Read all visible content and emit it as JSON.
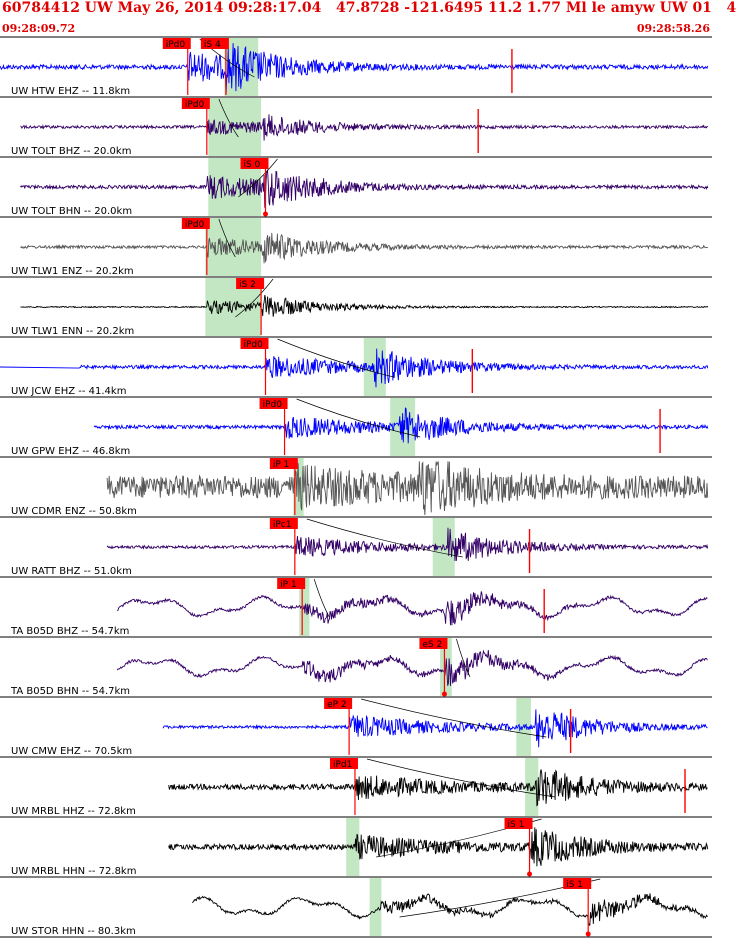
{
  "header": {
    "title": "60784412 UW May 26, 2014 09:28:17.04   47.8728 -121.6495 11.2 1.77 Ml le amyw UW 01   4",
    "time_start": "09:28:09.72",
    "time_end": "09:28:58.26"
  },
  "colors": {
    "header_text": "#e00000",
    "pick_box": "#ff0000",
    "pick_line": "#ff0000",
    "window_band": "#b9e3b9",
    "grid_line": "#000000",
    "trace_blue": "#0000ff",
    "trace_purple": "#330066",
    "trace_gray": "#555555",
    "trace_black": "#000000",
    "label_text": "#000000"
  },
  "chart_data": {
    "type": "seismogram",
    "x_units": "seconds after 09:28:09.72",
    "xlim": [
      0,
      48.54
    ],
    "traces": [
      {
        "label": "UW HTW EHZ -- 11.8km",
        "color": "blue",
        "picks": [
          {
            "label": "iPd0",
            "t": 12.8
          },
          {
            "label": "iS 4",
            "t": 15.4
          }
        ],
        "window_bands": [
          15.3,
          17.6
        ],
        "marker_t": 34.9,
        "signal_start": 0.0,
        "signal_end": 49.0,
        "onset_t": 12.8,
        "emergent_t": 15.4,
        "flat_before": true,
        "noise": 0.08,
        "amp": 0.95,
        "style": "local"
      },
      {
        "label": "UW TOLT BHZ -- 20.0km",
        "color": "purple",
        "picks": [
          {
            "label": "iPd0",
            "t": 14.1
          }
        ],
        "window_bands": [
          14.2,
          17.8
        ],
        "marker_t": 32.6,
        "signal_start": 1.4,
        "signal_end": 50.5,
        "onset_t": 14.1,
        "emergent_t": 17.9,
        "flat_before": false,
        "noise": 0.05,
        "amp": 0.45,
        "style": "local"
      },
      {
        "label": "UW TOLT BHN -- 20.0km",
        "color": "purple",
        "picks": [
          {
            "label": "iS 0",
            "t": 18.1,
            "arrow": true
          }
        ],
        "window_bands": [
          14.2,
          17.8
        ],
        "marker_t": null,
        "signal_start": 1.4,
        "signal_end": 50.5,
        "onset_t": 14.1,
        "emergent_t": 18.0,
        "flat_before": false,
        "noise": 0.06,
        "amp": 0.75,
        "style": "local"
      },
      {
        "label": "UW TLW1 ENZ -- 20.2km",
        "color": "gray",
        "picks": [
          {
            "label": "iPd0",
            "t": 14.1
          }
        ],
        "window_bands": [
          14.0,
          17.8
        ],
        "marker_t": null,
        "signal_start": 1.4,
        "signal_end": 50.5,
        "onset_t": 14.1,
        "emergent_t": 17.9,
        "flat_before": false,
        "noise": 0.05,
        "amp": 0.6,
        "style": "local"
      },
      {
        "label": "UW TLW1 ENN -- 20.2km",
        "color": "black",
        "picks": [
          {
            "label": "iS 2",
            "t": 17.8
          }
        ],
        "window_bands": [
          14.0,
          17.8
        ],
        "marker_t": null,
        "signal_start": 1.4,
        "signal_end": 50.5,
        "onset_t": 14.1,
        "emergent_t": 17.9,
        "flat_before": false,
        "noise": 0.02,
        "amp": 0.45,
        "style": "local"
      },
      {
        "label": "UW JCW EHZ -- 41.4km",
        "color": "blue",
        "picks": [
          {
            "label": "iPd0",
            "t": 18.1
          }
        ],
        "window_bands": [
          24.8,
          26.3
        ],
        "marker_t": 32.2,
        "signal_start": 5.4,
        "signal_end": 55.0,
        "onset_t": 18.1,
        "emergent_t": 25.5,
        "flat_before": true,
        "noise": 0.06,
        "amp": 0.7,
        "style": "regional"
      },
      {
        "label": "UW GPW EHZ -- 46.8km",
        "color": "blue",
        "picks": [
          {
            "label": "iPd0",
            "t": 19.4
          }
        ],
        "window_bands": [
          26.6,
          28.3
        ],
        "marker_t": 45.0,
        "signal_start": 6.4,
        "signal_end": 56.0,
        "onset_t": 19.4,
        "emergent_t": 27.2,
        "flat_before": false,
        "noise": 0.06,
        "amp": 0.7,
        "style": "regional"
      },
      {
        "label": "UW CDMR ENZ -- 50.8km",
        "color": "gray",
        "picks": [
          {
            "label": "iP 1",
            "t": 20.1
          }
        ],
        "window_bands": [
          20.0,
          20.7
        ],
        "marker_t": null,
        "signal_start": 7.3,
        "signal_end": 56.8,
        "onset_t": 20.1,
        "emergent_t": 28.5,
        "flat_before": false,
        "noise": 0.4,
        "amp": 0.9,
        "style": "noisy"
      },
      {
        "label": "UW RATT BHZ -- 51.0km",
        "color": "purple",
        "picks": [
          {
            "label": "iPc1",
            "t": 20.1
          }
        ],
        "window_bands": [
          29.5,
          31.0
        ],
        "marker_t": 36.1,
        "signal_start": 7.3,
        "signal_end": 56.7,
        "onset_t": 20.1,
        "emergent_t": 30.5,
        "flat_before": false,
        "noise": 0.05,
        "amp": 0.65,
        "style": "regional"
      },
      {
        "label": "TA B05D BHZ -- 54.7km",
        "color": "purple",
        "picks": [
          {
            "label": "iP 1",
            "t": 20.6
          }
        ],
        "window_bands": [
          20.4,
          21.1
        ],
        "marker_t": 37.1,
        "signal_start": 8.0,
        "signal_end": 57.8,
        "onset_t": 20.6,
        "emergent_t": 30.3,
        "flat_before": false,
        "noise": 0.05,
        "amp": 0.55,
        "style": "wavy"
      },
      {
        "label": "TA B05D BHN -- 54.7km",
        "color": "purple",
        "picks": [
          {
            "label": "eS 2",
            "t": 30.3,
            "arrow": true
          }
        ],
        "window_bands": [
          30.0,
          30.8
        ],
        "marker_t": null,
        "signal_start": 8.0,
        "signal_end": 57.8,
        "onset_t": 20.6,
        "emergent_t": 30.3,
        "flat_before": false,
        "noise": 0.05,
        "amp": 0.55,
        "style": "wavy"
      },
      {
        "label": "UW CMW EHZ -- 70.5km",
        "color": "blue",
        "picks": [
          {
            "label": "eP 2",
            "t": 23.8
          }
        ],
        "window_bands": [
          35.2,
          36.2
        ],
        "marker_t": 38.9,
        "signal_start": 11.1,
        "signal_end": 60.6,
        "onset_t": 23.8,
        "emergent_t": 36.5,
        "flat_before": false,
        "noise": 0.05,
        "amp": 0.75,
        "style": "regional"
      },
      {
        "label": "UW MRBL HHZ -- 72.8km",
        "color": "black",
        "picks": [
          {
            "label": "iPd1",
            "t": 24.2
          }
        ],
        "window_bands": [
          35.8,
          36.7
        ],
        "marker_t": 46.7,
        "signal_start": 11.5,
        "signal_end": 61.0,
        "onset_t": 24.2,
        "emergent_t": 36.5,
        "flat_before": false,
        "noise": 0.1,
        "amp": 0.7,
        "style": "regional"
      },
      {
        "label": "UW MRBL HHN -- 72.8km",
        "color": "black",
        "picks": [
          {
            "label": "iS 1",
            "t": 36.1,
            "arrow": true
          }
        ],
        "window_bands": [
          23.6,
          24.5
        ],
        "marker_t": null,
        "signal_start": 11.5,
        "signal_end": 61.0,
        "onset_t": 24.2,
        "emergent_t": 36.2,
        "flat_before": false,
        "noise": 0.1,
        "amp": 0.7,
        "style": "regional"
      },
      {
        "label": "UW STOR HHN -- 80.3km",
        "color": "black",
        "picks": [
          {
            "label": "iS 1",
            "t": 40.1,
            "arrow": true
          }
        ],
        "window_bands": [
          25.2,
          26.0
        ],
        "marker_t": null,
        "signal_start": 13.1,
        "signal_end": 62.2,
        "onset_t": 25.8,
        "emergent_t": 40.1,
        "flat_before": false,
        "noise": 0.05,
        "amp": 0.5,
        "style": "wavy"
      }
    ]
  }
}
